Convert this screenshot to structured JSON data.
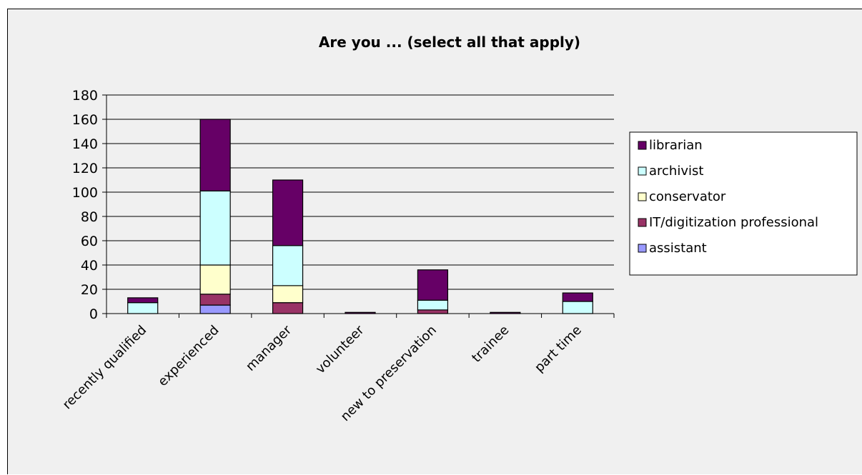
{
  "chart_data": {
    "type": "bar",
    "stacked": true,
    "title": "Are you ... (select all that apply)",
    "xlabel": "",
    "ylabel": "",
    "ylim": [
      0,
      180
    ],
    "yticks": [
      0,
      20,
      40,
      60,
      80,
      100,
      120,
      140,
      160,
      180
    ],
    "grid": true,
    "legend_position": "right",
    "categories": [
      "recently qualified",
      "experienced",
      "manager",
      "volunteer",
      "new to preservation",
      "trainee",
      "part time"
    ],
    "series": [
      {
        "name": "assistant",
        "color": "#9999ff",
        "values": [
          0,
          7,
          0,
          0,
          0,
          0,
          0
        ]
      },
      {
        "name": "IT/digitization professional",
        "color": "#993366",
        "values": [
          0,
          9,
          9,
          0,
          3,
          0,
          0
        ]
      },
      {
        "name": "conservator",
        "color": "#ffffcc",
        "values": [
          0,
          24,
          14,
          0,
          0,
          0,
          0
        ]
      },
      {
        "name": "archivist",
        "color": "#ccffff",
        "values": [
          9,
          61,
          33,
          0,
          8,
          0,
          10
        ]
      },
      {
        "name": "librarian",
        "color": "#660066",
        "values": [
          4,
          59,
          54,
          1,
          25,
          1,
          7
        ]
      }
    ],
    "legend_order": [
      "librarian",
      "archivist",
      "conservator",
      "IT/digitization professional",
      "assistant"
    ]
  }
}
